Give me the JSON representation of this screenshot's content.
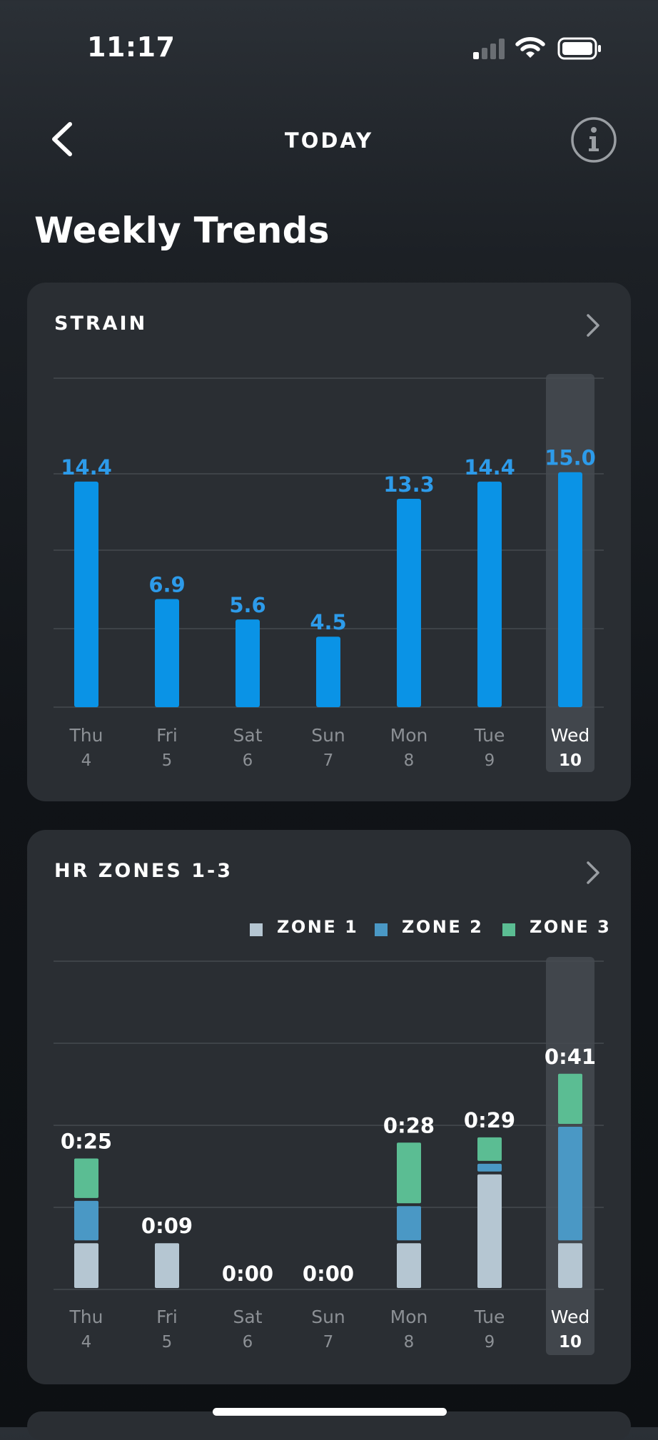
{
  "status_bar": {
    "time": "11:17"
  },
  "nav": {
    "title": "TODAY"
  },
  "page": {
    "title": "Weekly Trends"
  },
  "strain_card": {
    "title": "STRAIN"
  },
  "hr_card": {
    "title": "HR ZONES 1-3",
    "legend": [
      {
        "label": "ZONE 1",
        "color": "#b5c6d2"
      },
      {
        "label": "ZONE 2",
        "color": "#4a98c5"
      },
      {
        "label": "ZONE 3",
        "color": "#5bbd93"
      }
    ]
  },
  "colors": {
    "strain_blue": "#0a93e6",
    "strain_label": "#2d9bea",
    "highlight": "#41464c",
    "gridline": "#454a50"
  },
  "chart_data": [
    {
      "type": "bar",
      "title": "STRAIN",
      "categories": [
        "Thu",
        "Fri",
        "Sat",
        "Sun",
        "Mon",
        "Tue",
        "Wed"
      ],
      "dates": [
        "4",
        "5",
        "6",
        "7",
        "8",
        "9",
        "10"
      ],
      "values": [
        14.4,
        6.9,
        5.6,
        4.5,
        13.3,
        14.4,
        15.0
      ],
      "value_labels": [
        "14.4",
        "6.9",
        "5.6",
        "4.5",
        "13.3",
        "14.4",
        "15.0"
      ],
      "highlighted": "Wed",
      "ylim": [
        0,
        21
      ],
      "grid": true
    },
    {
      "type": "bar",
      "stacked": true,
      "title": "HR ZONES 1-3",
      "categories": [
        "Thu",
        "Fri",
        "Sat",
        "Sun",
        "Mon",
        "Tue",
        "Wed"
      ],
      "dates": [
        "4",
        "5",
        "6",
        "7",
        "8",
        "9",
        "10"
      ],
      "total_labels": [
        "0:25",
        "0:09",
        "0:00",
        "0:00",
        "0:28",
        "0:29",
        "0:41"
      ],
      "series": [
        {
          "name": "ZONE 1",
          "values": [
            9,
            9,
            0,
            0,
            9,
            22,
            9
          ]
        },
        {
          "name": "ZONE 2",
          "values": [
            8,
            0,
            0,
            0,
            7,
            2,
            22
          ]
        },
        {
          "name": "ZONE 3",
          "values": [
            8,
            0,
            0,
            0,
            12,
            5,
            10
          ]
        }
      ],
      "highlighted": "Wed",
      "ylim": [
        0,
        62
      ],
      "grid": true
    }
  ]
}
